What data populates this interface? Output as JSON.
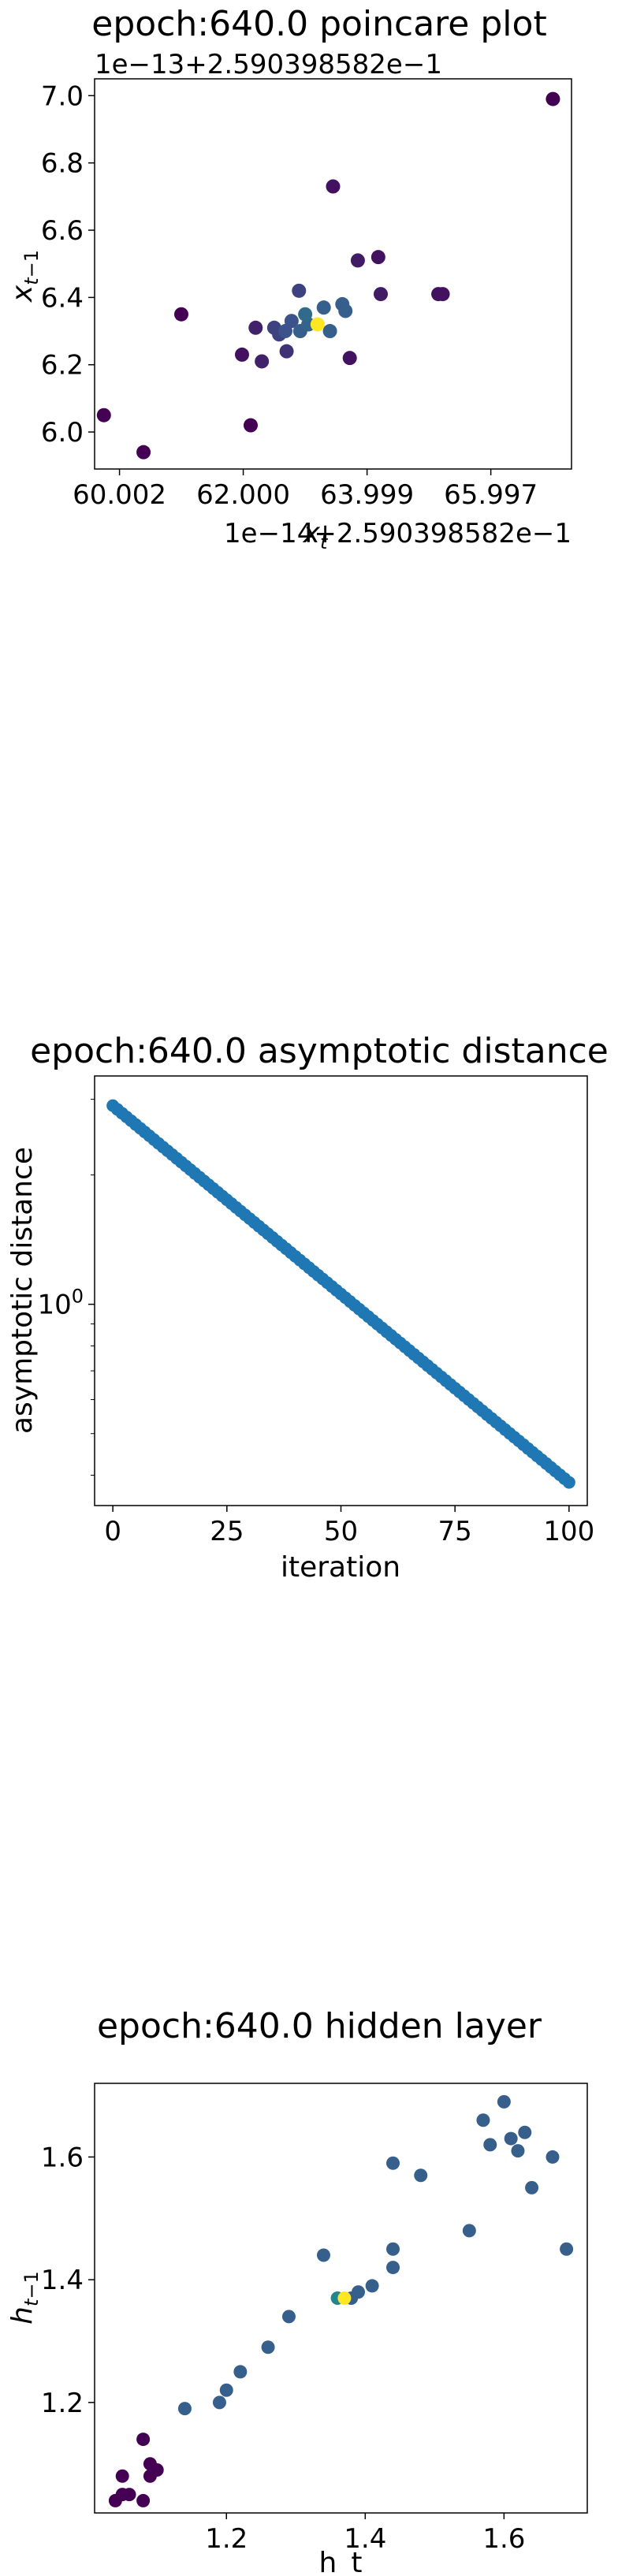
{
  "charts": {
    "poincare": {
      "title": "epoch:640.0 poincare plot",
      "y_offset": "1e−13+2.590398582e−1",
      "x_offset": "1e−14+2.590398582e−1",
      "xlabel": "x_t",
      "ylabel": "x_{t-1}",
      "x_ticks": [
        "60.002",
        "62.000",
        "63.999",
        "65.997"
      ],
      "y_ticks": [
        "6.0",
        "6.2",
        "6.4",
        "6.6",
        "6.8",
        "7.0"
      ]
    },
    "asymp": {
      "title": "epoch:640.0 asymptotic distance",
      "xlabel": "iteration",
      "ylabel": "asymptotic distance",
      "x_ticks": [
        "0",
        "25",
        "50",
        "75",
        "100"
      ],
      "y_tick_base": "10",
      "y_tick_exp": "0"
    },
    "hidden": {
      "title": "epoch:640.0 hidden layer",
      "xlabel": "h_t",
      "ylabel": "h_{t-1}",
      "x_ticks": [
        "1.2",
        "1.4",
        "1.6"
      ],
      "y_ticks": [
        "1.2",
        "1.4",
        "1.6"
      ]
    }
  },
  "chart_data": [
    {
      "type": "scatter",
      "title": "epoch:640.0 poincare plot",
      "xlabel": "x_t",
      "ylabel": "x_{t-1}",
      "x_offset": 0.2590398582,
      "y_offset": 0.2590398582,
      "x_scale": 1e-14,
      "y_scale": 1e-13,
      "xlim": [
        59.6,
        67.3
      ],
      "ylim": [
        5.89,
        7.05
      ],
      "colormap": "viridis",
      "x": [
        67.0,
        59.75,
        60.39,
        61.0,
        61.98,
        62.12,
        62.2,
        62.3,
        62.5,
        62.58,
        62.68,
        62.7,
        62.78,
        62.9,
        62.92,
        63.0,
        63.05,
        63.2,
        63.3,
        63.4,
        63.45,
        63.6,
        63.65,
        63.72,
        63.85,
        64.18,
        64.22,
        65.15,
        65.22
      ],
      "y": [
        6.99,
        6.05,
        5.94,
        6.35,
        6.23,
        6.02,
        6.31,
        6.21,
        6.31,
        6.29,
        6.3,
        6.24,
        6.33,
        6.42,
        6.3,
        6.35,
        6.32,
        6.32,
        6.37,
        6.3,
        6.73,
        6.38,
        6.36,
        6.22,
        6.51,
        6.52,
        6.41,
        6.41,
        6.41
      ],
      "c": [
        0.0,
        0.0,
        0.0,
        0.0,
        0.05,
        0.0,
        0.1,
        0.1,
        0.2,
        0.2,
        0.25,
        0.15,
        0.25,
        0.2,
        0.3,
        0.35,
        0.32,
        1.0,
        0.3,
        0.3,
        0.05,
        0.3,
        0.3,
        0.05,
        0.08,
        0.05,
        0.08,
        0.05,
        0.05
      ]
    },
    {
      "type": "scatter",
      "title": "epoch:640.0 asymptotic distance",
      "xlabel": "iteration",
      "ylabel": "asymptotic distance",
      "xlim": [
        -4,
        104
      ],
      "ylim": [
        0.34,
        3.4
      ],
      "yscale": "log",
      "n": 101,
      "y_start": 2.9,
      "y_end": 0.385,
      "color": "#1f77b4"
    },
    {
      "type": "scatter",
      "title": "epoch:640.0 hidden layer",
      "xlabel": "h_t",
      "ylabel": "h_{t-1}",
      "xlim": [
        1.01,
        1.72
      ],
      "ylim": [
        1.02,
        1.72
      ],
      "colormap": "viridis",
      "x": [
        1.04,
        1.05,
        1.06,
        1.05,
        1.08,
        1.09,
        1.09,
        1.08,
        1.1,
        1.14,
        1.19,
        1.2,
        1.22,
        1.26,
        1.29,
        1.34,
        1.37,
        1.36,
        1.38,
        1.39,
        1.41,
        1.44,
        1.44,
        1.44,
        1.48,
        1.55,
        1.57,
        1.58,
        1.6,
        1.61,
        1.62,
        1.63,
        1.64,
        1.67,
        1.69
      ],
      "y": [
        1.04,
        1.05,
        1.05,
        1.08,
        1.04,
        1.08,
        1.1,
        1.14,
        1.09,
        1.19,
        1.2,
        1.22,
        1.25,
        1.29,
        1.34,
        1.44,
        1.37,
        1.37,
        1.37,
        1.38,
        1.39,
        1.42,
        1.45,
        1.59,
        1.57,
        1.48,
        1.66,
        1.62,
        1.69,
        1.63,
        1.61,
        1.64,
        1.55,
        1.6,
        1.45
      ],
      "c": [
        0.0,
        0.0,
        0.0,
        0.0,
        0.0,
        0.0,
        0.0,
        0.0,
        0.0,
        0.3,
        0.3,
        0.3,
        0.3,
        0.3,
        0.3,
        0.3,
        1.0,
        0.45,
        0.3,
        0.3,
        0.3,
        0.3,
        0.3,
        0.3,
        0.3,
        0.3,
        0.3,
        0.3,
        0.3,
        0.3,
        0.3,
        0.3,
        0.3,
        0.3,
        0.3
      ]
    }
  ]
}
